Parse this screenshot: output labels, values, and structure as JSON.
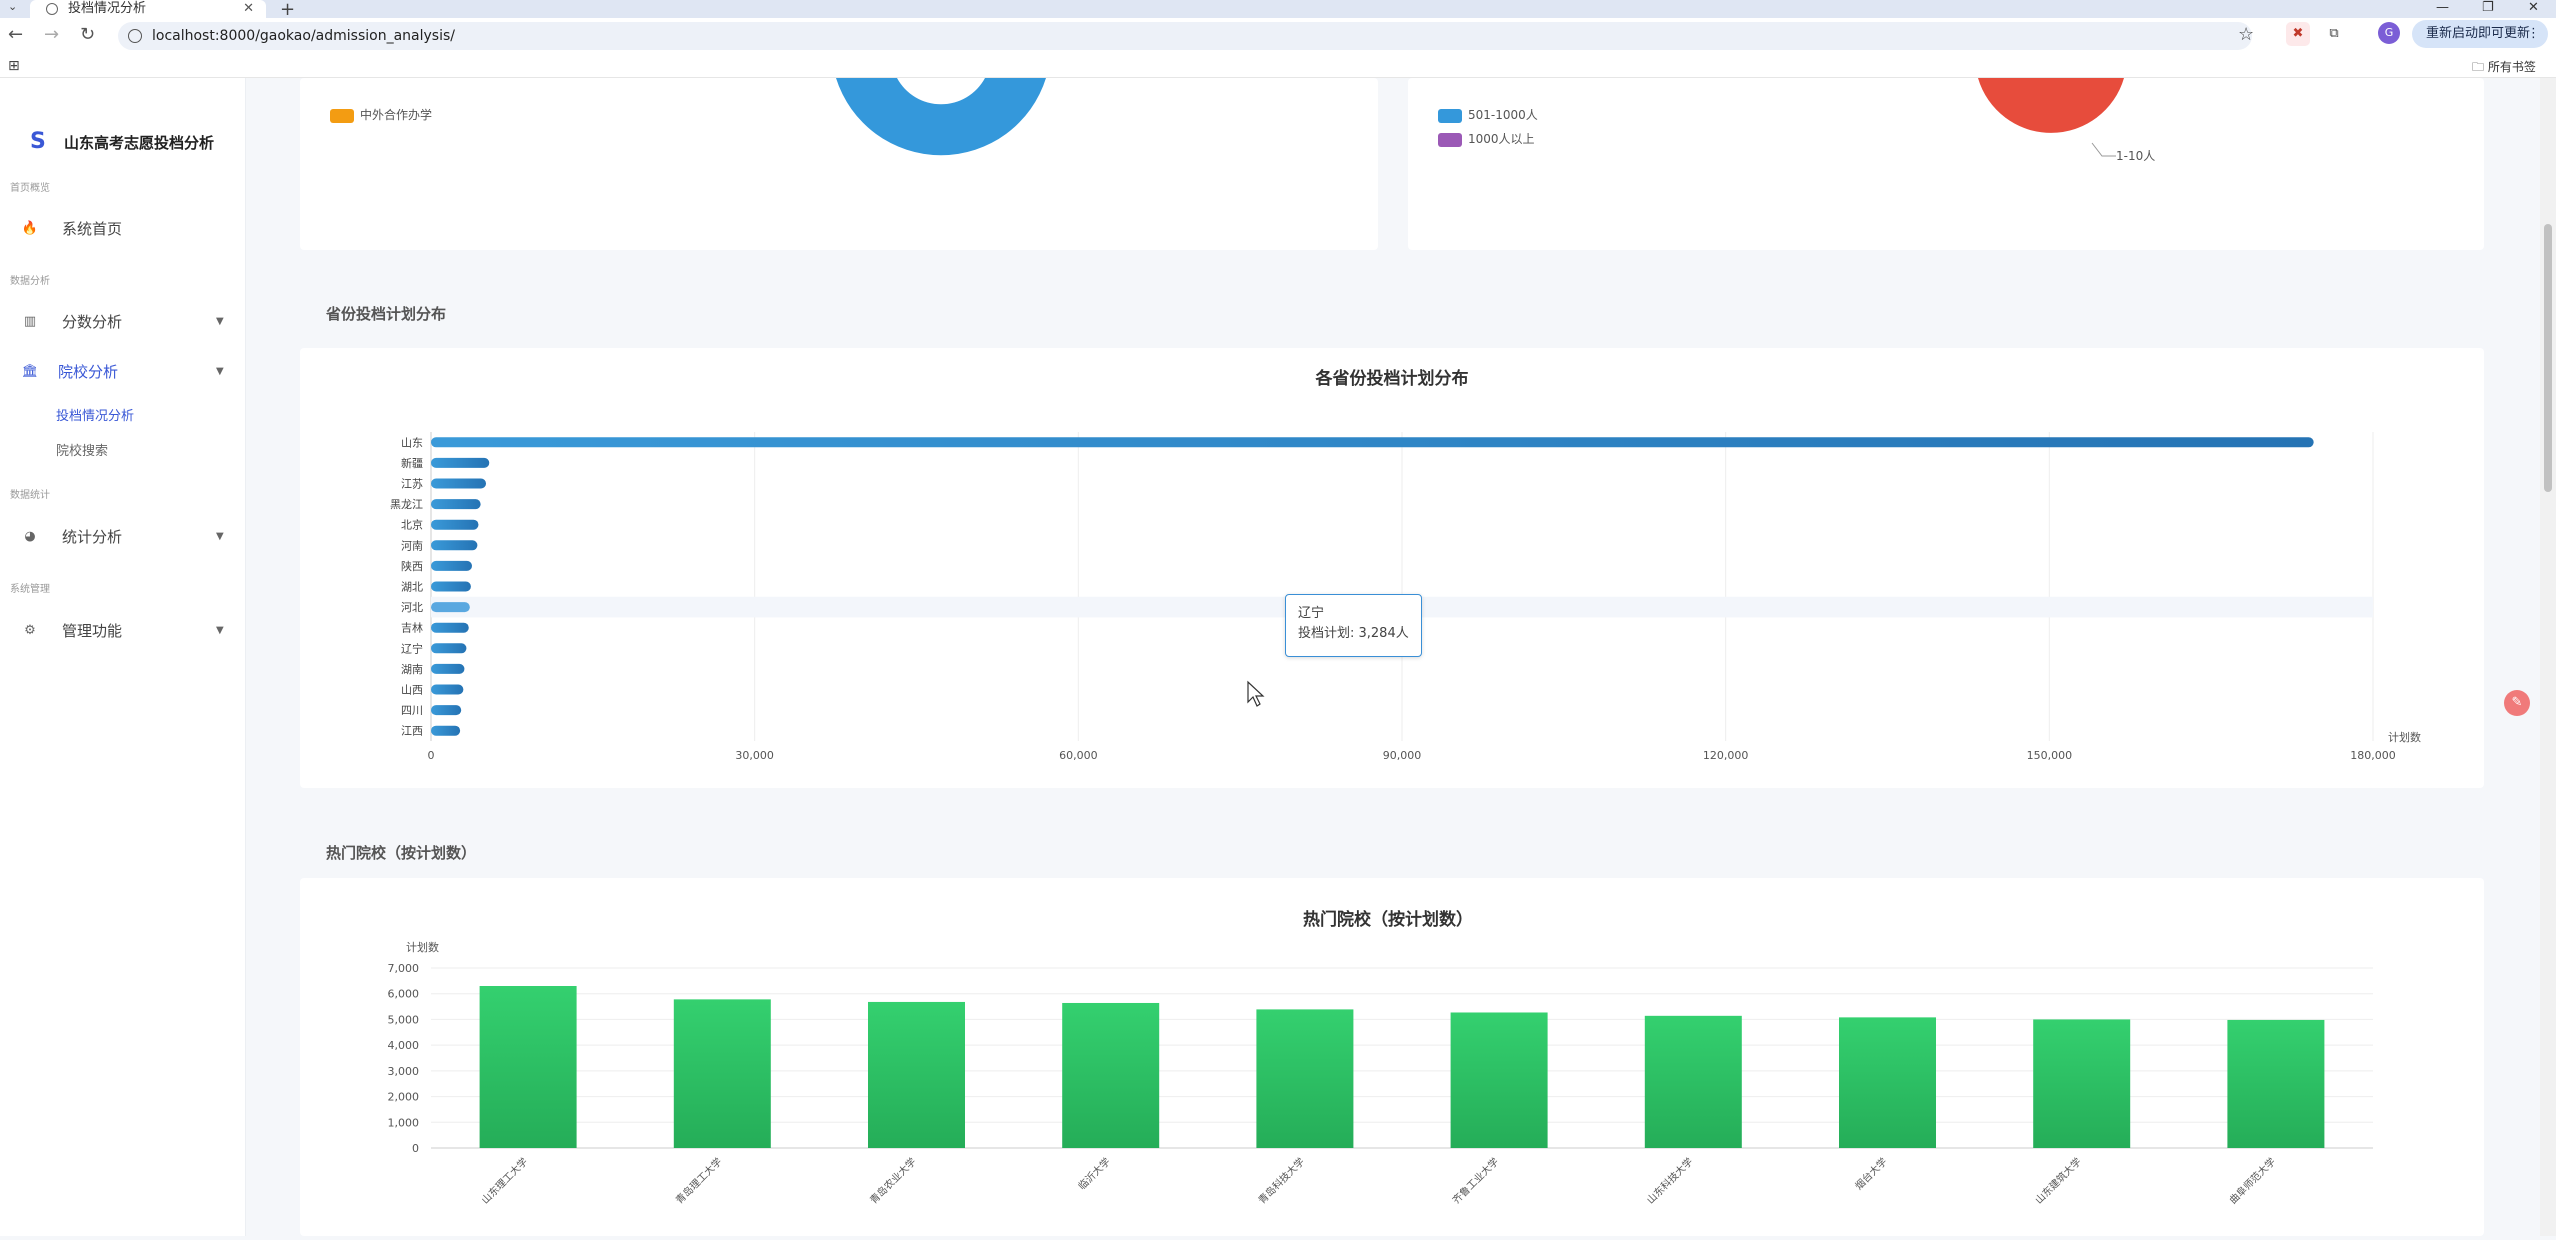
{
  "browser": {
    "tab_title": "投档情况分析",
    "url": "localhost:8000/gaokao/admission_analysis/",
    "restart_label": "重新启动即可更新",
    "all_bookmarks": "所有书签",
    "avatar": "G"
  },
  "sidebar": {
    "brand": "山东高考志愿投档分析",
    "groups": [
      "首页概览",
      "数据分析",
      "数据统计",
      "系统管理"
    ],
    "items": [
      {
        "label": "系统首页",
        "icon": "flame-icon"
      },
      {
        "label": "分数分析",
        "icon": "bar-chart-icon"
      },
      {
        "label": "院校分析",
        "icon": "bank-icon"
      },
      {
        "label": "统计分析",
        "icon": "pie-chart-icon"
      },
      {
        "label": "管理功能",
        "icon": "gears-icon"
      }
    ],
    "subitems": [
      "投档情况分析",
      "院校搜索"
    ]
  },
  "top_legends": {
    "left": [
      "中外合作办学"
    ],
    "right": [
      "501-1000人",
      "1000人以上"
    ],
    "pie_label": "1-10人"
  },
  "colors": {
    "accent": "#3a58d6",
    "blue_bar": "#2f86c8",
    "green_bar": "#2dc565",
    "orange": "#f39c12",
    "ring_blue": "#3498db",
    "purple": "#9b59b6",
    "red": "#e74c3c"
  },
  "sections": {
    "province": "省份投档计划分布",
    "hot": "热门院校（按计划数）"
  },
  "chart_data": [
    {
      "type": "bar",
      "orientation": "horizontal",
      "title": "各省份投档计划分布",
      "xlabel": "计划数",
      "ylabel": "",
      "categories": [
        "山东",
        "新疆",
        "江苏",
        "黑龙江",
        "北京",
        "河南",
        "陕西",
        "湖北",
        "河北",
        "吉林",
        "辽宁",
        "湖南",
        "山西",
        "四川",
        "江西"
      ],
      "values": [
        174500,
        5400,
        5100,
        4600,
        4400,
        4300,
        3800,
        3700,
        3600,
        3500,
        3284,
        3100,
        3000,
        2800,
        2700
      ],
      "xlim": [
        0,
        180000
      ],
      "xticks": [
        "0",
        "30,000",
        "60,000",
        "90,000",
        "120,000",
        "150,000",
        "180,000"
      ],
      "tooltip": {
        "category": "辽宁",
        "text": "投档计划: 3,284人"
      },
      "highlight": "河北",
      "grid": true
    },
    {
      "type": "bar",
      "title": "热门院校（按计划数）",
      "xlabel": "",
      "ylabel": "计划数",
      "categories": [
        "山东理工大学",
        "青岛理工大学",
        "青岛农业大学",
        "临沂大学",
        "青岛科技大学",
        "齐鲁工业大学",
        "山东科技大学",
        "烟台大学",
        "山东建筑大学",
        "曲阜师范大学"
      ],
      "values": [
        6300,
        5780,
        5680,
        5640,
        5390,
        5270,
        5140,
        5080,
        5000,
        4980
      ],
      "ylim": [
        0,
        7000
      ],
      "yticks": [
        "0",
        "1,000",
        "2,000",
        "3,000",
        "4,000",
        "5,000",
        "6,000",
        "7,000"
      ],
      "grid": true
    }
  ]
}
